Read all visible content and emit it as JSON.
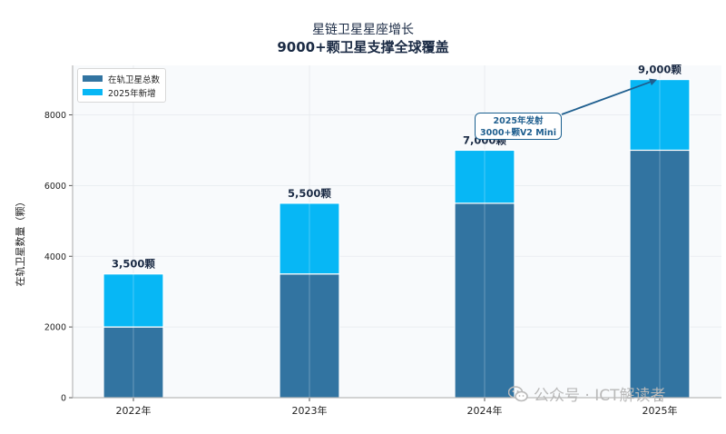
{
  "chart_data": {
    "type": "bar",
    "stacked": true,
    "title": "星链卫星星座增长",
    "subtitle": "9000+颗卫星支撑全球覆盖",
    "xlabel": "",
    "ylabel": "在轨卫星数量（颗）",
    "categories": [
      "2022年",
      "2023年",
      "2024年",
      "2025年"
    ],
    "series": [
      {
        "name": "在轨卫星总数",
        "values": [
          2000,
          3500,
          5500,
          7000
        ],
        "color": "#3274a1"
      },
      {
        "name": "2025年新增",
        "values": [
          1500,
          2000,
          1500,
          2000
        ],
        "color": "#07b7f5"
      }
    ],
    "totals_labels": [
      "3,500颗",
      "5,500颗",
      "7,000颗",
      "9,000颗"
    ],
    "totals": [
      3500,
      5500,
      7000,
      9000
    ],
    "ylim": [
      0,
      9400
    ],
    "yticks": [
      0,
      2000,
      4000,
      6000,
      8000
    ],
    "grid": true,
    "legend_position": "top-left",
    "annotation": {
      "line1": "2025年发射",
      "line2": "3000+颗V2 Mini",
      "arrow_to_category": "2025年",
      "arrow_to_value": 9000,
      "color": "#1f5f8f"
    }
  },
  "watermark": {
    "text": "公众号 · ICT解读者"
  }
}
